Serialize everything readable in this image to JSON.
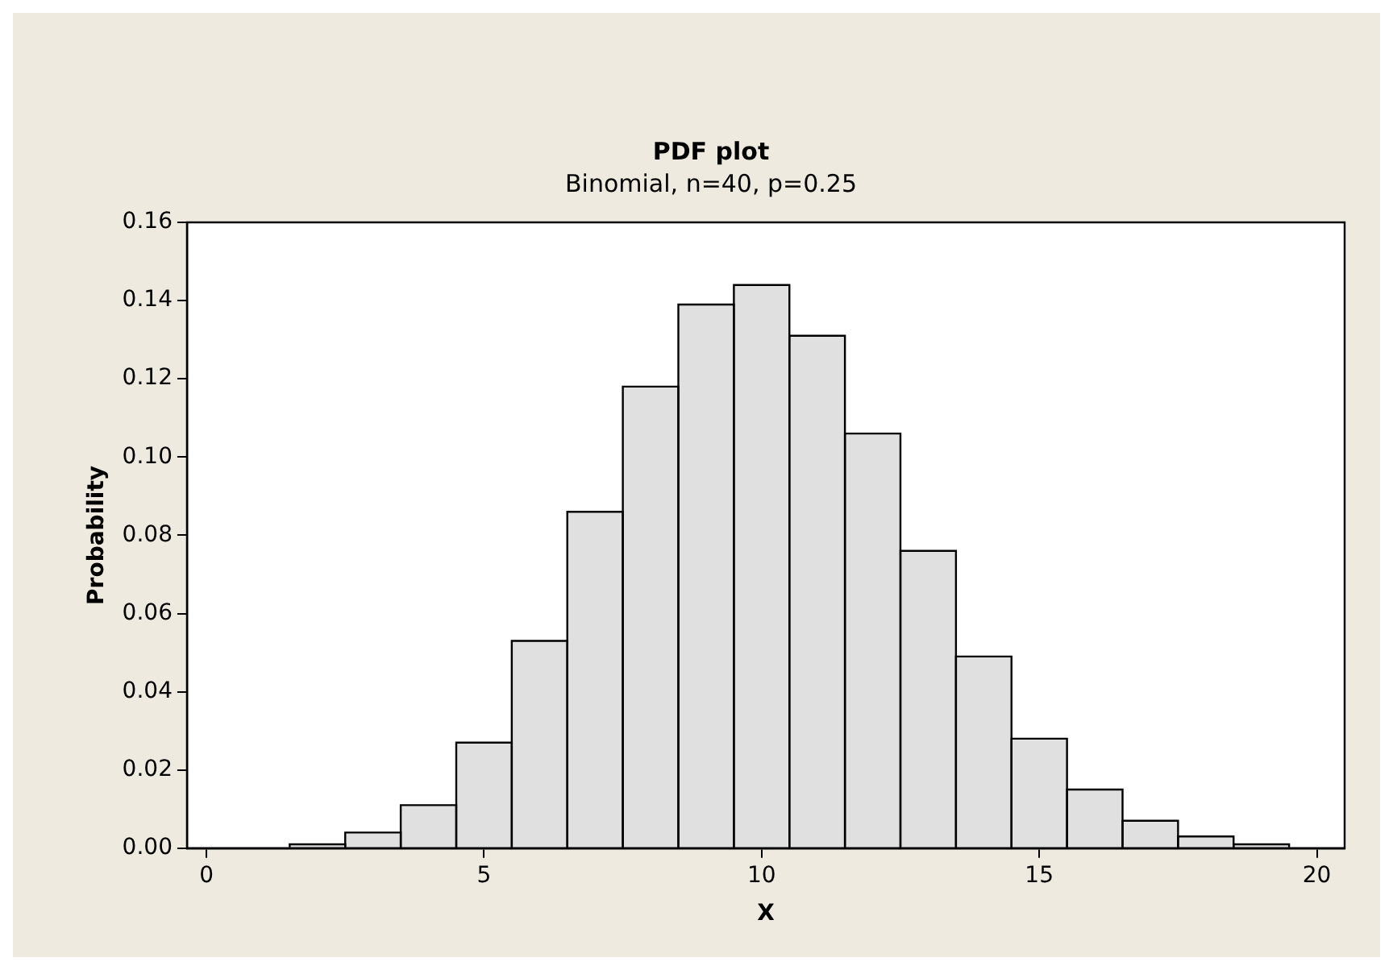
{
  "chart_data": {
    "type": "histogram",
    "title": "PDF plot",
    "subtitle": "Binomial, n=40, p=0.25",
    "xlabel": "X",
    "ylabel": "Probability",
    "bins": [
      1.5,
      2.5,
      3.5,
      4.5,
      5.5,
      6.5,
      7.5,
      8.5,
      9.5,
      10.5,
      11.5,
      12.5,
      13.5,
      14.5,
      15.5,
      16.5,
      17.5,
      18.5,
      19.5
    ],
    "values": [
      0.001,
      0.004,
      0.011,
      0.027,
      0.053,
      0.086,
      0.118,
      0.139,
      0.144,
      0.131,
      0.106,
      0.076,
      0.049,
      0.028,
      0.015,
      0.007,
      0.003,
      0.001
    ],
    "color": "#e0e0e0",
    "xlim": [
      -0.35,
      20.5
    ],
    "xticks": [
      0,
      5,
      10,
      15,
      20
    ],
    "ylim": [
      0,
      0.16
    ],
    "yticks": [
      {
        "value": 0,
        "label": "0.00"
      },
      {
        "value": 0.02,
        "label": "0.02"
      },
      {
        "value": 0.04,
        "label": "0.04"
      },
      {
        "value": 0.06,
        "label": "0.06"
      },
      {
        "value": 0.08,
        "label": "0.08"
      },
      {
        "value": 0.1,
        "label": "0.10"
      },
      {
        "value": 0.12,
        "label": "0.12"
      },
      {
        "value": 0.14,
        "label": "0.14"
      },
      {
        "value": 0.16,
        "label": "0.16"
      }
    ],
    "grid": false
  }
}
